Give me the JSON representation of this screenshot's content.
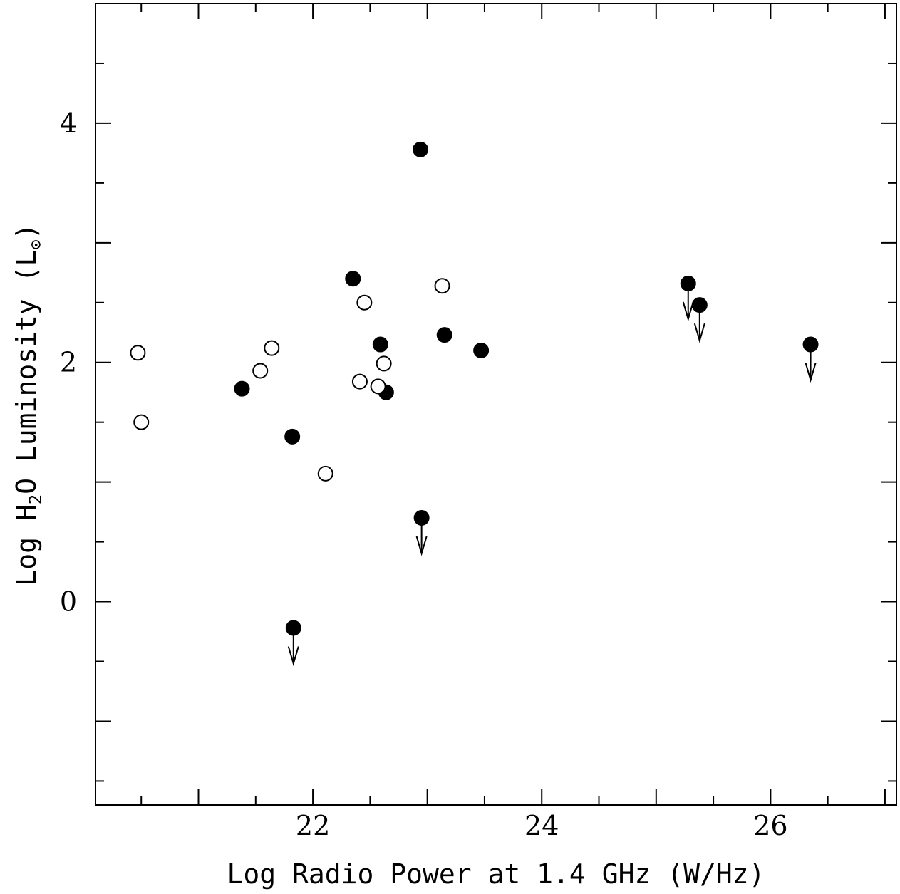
{
  "chart_data": {
    "type": "scatter",
    "xlabel": "Log Radio Power at 1.4 GHz (W/Hz)",
    "ylabel": "Log H₂O Luminosity (L⊙)",
    "ylabel_parts": {
      "prefix": "Log H",
      "sub": "2",
      "mid": "O Luminosity (L",
      "unit_sub": "⊙",
      "suffix": ")"
    },
    "xlim": [
      20.1,
      27.1
    ],
    "ylim": [
      -1.7,
      5.0
    ],
    "x_ticks": [
      22,
      24,
      26
    ],
    "x_tick_labels": [
      "22",
      "24",
      "26"
    ],
    "y_ticks": [
      0,
      2,
      4
    ],
    "y_tick_labels": [
      "0",
      "2",
      "4"
    ],
    "grid": false,
    "legend": "none",
    "series": [
      {
        "marker": "filled-circle",
        "points": [
          {
            "x": 21.38,
            "y": 1.78
          },
          {
            "x": 21.82,
            "y": 1.38
          },
          {
            "x": 22.35,
            "y": 2.7
          },
          {
            "x": 22.59,
            "y": 2.15
          },
          {
            "x": 22.64,
            "y": 1.75
          },
          {
            "x": 22.94,
            "y": 3.78
          },
          {
            "x": 23.15,
            "y": 2.23
          },
          {
            "x": 23.47,
            "y": 2.1
          }
        ]
      },
      {
        "marker": "open-circle",
        "points": [
          {
            "x": 20.47,
            "y": 2.08
          },
          {
            "x": 20.5,
            "y": 1.5
          },
          {
            "x": 21.54,
            "y": 1.93
          },
          {
            "x": 21.64,
            "y": 2.12
          },
          {
            "x": 22.11,
            "y": 1.07
          },
          {
            "x": 22.41,
            "y": 1.84
          },
          {
            "x": 22.45,
            "y": 2.5
          },
          {
            "x": 22.57,
            "y": 1.8
          },
          {
            "x": 22.62,
            "y": 1.99
          },
          {
            "x": 23.13,
            "y": 2.64
          }
        ]
      },
      {
        "marker": "filled-circle-upper-limit",
        "points": [
          {
            "x": 21.83,
            "y": -0.22
          },
          {
            "x": 22.95,
            "y": 0.7
          },
          {
            "x": 25.28,
            "y": 2.66
          },
          {
            "x": 25.38,
            "y": 2.48
          },
          {
            "x": 26.35,
            "y": 2.15
          }
        ]
      }
    ]
  }
}
